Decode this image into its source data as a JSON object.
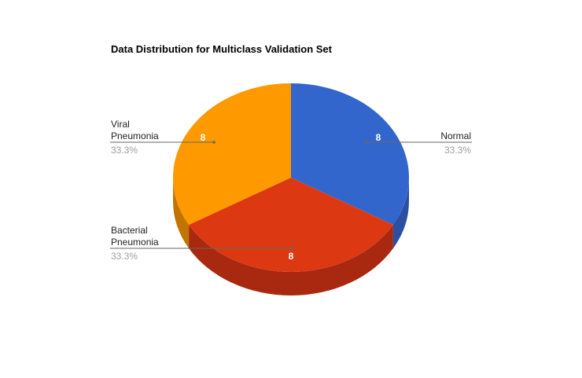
{
  "chart_data": {
    "type": "pie",
    "title": "Data Distribution for Multiclass Validation Set",
    "three_d": true,
    "categories": [
      "Normal",
      "Bacterial Pneumonia",
      "Viral Pneumonia"
    ],
    "values": [
      8,
      8,
      8
    ],
    "percent_labels": [
      "33.3%",
      "33.3%",
      "33.3%"
    ],
    "name_lines": [
      [
        "Normal"
      ],
      [
        "Bacterial",
        "Pneumonia"
      ],
      [
        "Viral",
        "Pneumonia"
      ]
    ],
    "colors": [
      "#3366cc",
      "#dc3912",
      "#ff9900"
    ],
    "side_colors": [
      "#2a4fa3",
      "#a8290f",
      "#c27400"
    ],
    "legend": "labeled"
  }
}
